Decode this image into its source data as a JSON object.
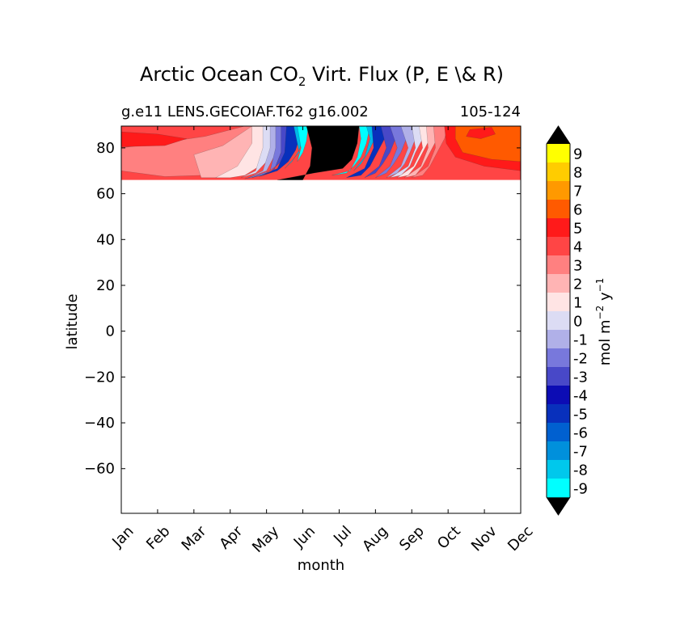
{
  "chart_data": {
    "type": "heatmap",
    "title_prefix": "Arctic Ocean CO",
    "title_sub": "2",
    "title_suffix": " Virt. Flux (P, E \\& R)",
    "subtitle_left": "g.e11 LENS.GECOIAF.T62 g16.002",
    "subtitle_right": "105-124",
    "xlabel": "month",
    "ylabel": "latitude",
    "x_ticks": [
      "Jan",
      "Feb",
      "Mar",
      "Apr",
      "May",
      "Jun",
      "Jul",
      "Aug",
      "Sep",
      "Oct",
      "Nov",
      "Dec"
    ],
    "xlim": [
      0,
      11
    ],
    "ylim": [
      -79.5,
      89.5
    ],
    "y_ticks": [
      80,
      60,
      40,
      20,
      0,
      -20,
      -40,
      -60
    ],
    "y_tick_labels": [
      "80",
      "60",
      "40",
      "20",
      "0",
      "−20",
      "−40",
      "−60"
    ],
    "data_lat_range": [
      66,
      90
    ],
    "colorbar": {
      "label_main": "mol m",
      "label_exp1": "−2",
      "label_mid": " y",
      "label_exp2": "−1",
      "levels": [
        "9",
        "8",
        "7",
        "6",
        "5",
        "4",
        "3",
        "2",
        "1",
        "0",
        "-1",
        "-2",
        "-3",
        "-4",
        "-5",
        "-6",
        "-7",
        "-8",
        "-9"
      ],
      "colors": [
        "#ffff00",
        "#ffcc00",
        "#ff9900",
        "#ff5a00",
        "#ff1a1a",
        "#ff4545",
        "#ff8080",
        "#ffb4b4",
        "#ffe4e4",
        "#dcdcf4",
        "#b0b0e8",
        "#7878dc",
        "#4848c8",
        "#0c0cb4",
        "#0830bc",
        "#0060d0",
        "#0090dc",
        "#00c8ec",
        "#00ffff"
      ],
      "over_color": "#000000",
      "under_color": "#000000"
    },
    "colors": {
      "black": "#000000",
      "c_m9": "#00ffff",
      "c_m7": "#00b8e8",
      "c_m5": "#0830bc",
      "c_m3": "#4848c8",
      "c_m2": "#7878dc",
      "c_m1": "#b0b0e8",
      "c_0": "#dcdcf4",
      "c_1": "#ffe4e4",
      "c_2": "#ffb4b4",
      "c_3": "#ff8080",
      "c_4": "#ff4545",
      "c_5": "#ff1a1a",
      "c_6": "#ff5a00"
    }
  }
}
